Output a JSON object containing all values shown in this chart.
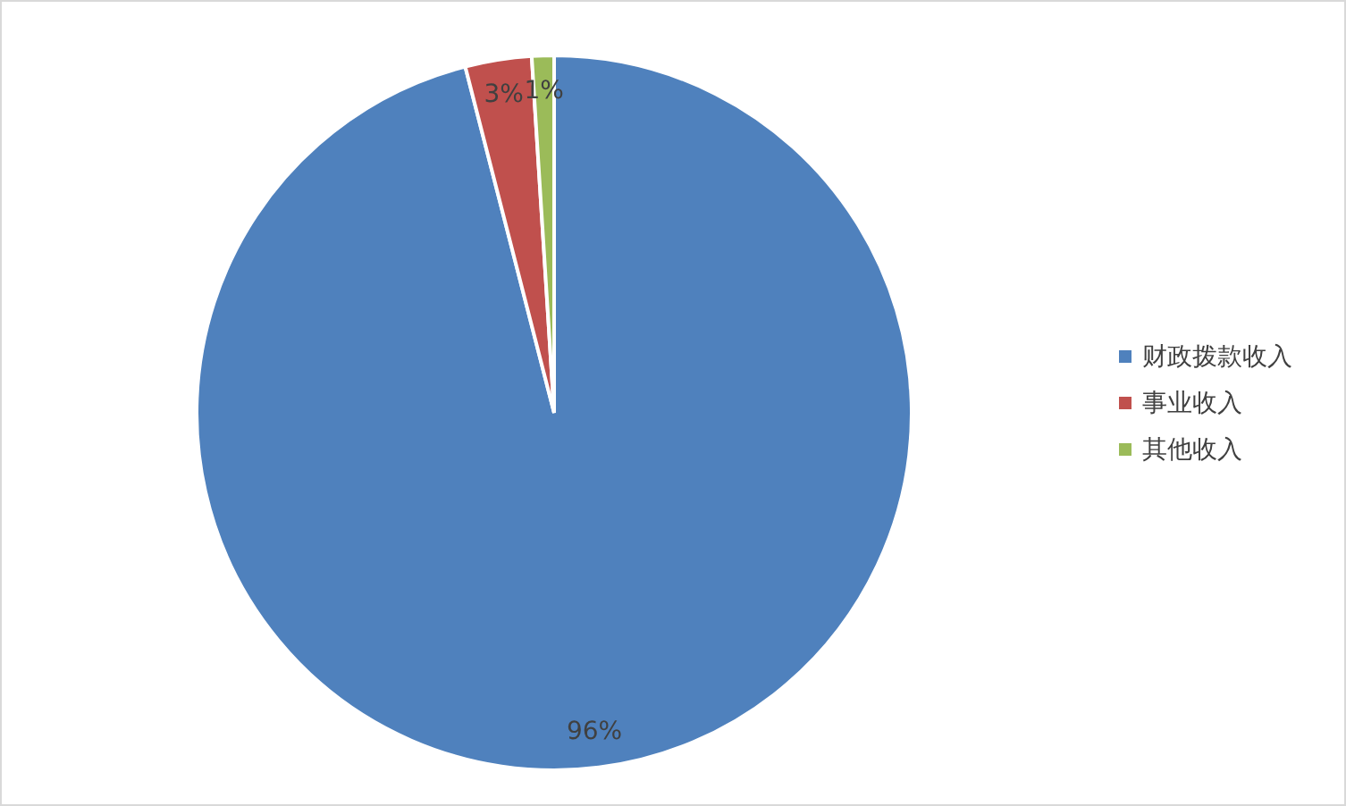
{
  "chart_data": {
    "type": "pie",
    "categories": [
      "财政拨款收入",
      "事业收入",
      "其他收入"
    ],
    "values": [
      96,
      3,
      1
    ],
    "colors": [
      "#4f81bd",
      "#c0504d",
      "#9bbb59"
    ],
    "value_labels": [
      "96%",
      "3%",
      "1%"
    ],
    "legend": "right"
  }
}
